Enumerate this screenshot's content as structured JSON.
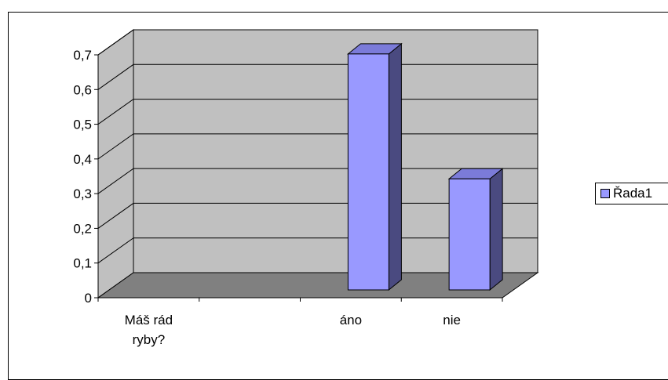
{
  "chart_data": {
    "type": "bar",
    "style": "3d-column",
    "categories": [
      "Máš rád ryby?",
      "",
      "áno",
      "nie"
    ],
    "category_lines": [
      [
        "Máš rád",
        "ryby?"
      ],
      [],
      [
        "áno"
      ],
      [
        "nie"
      ]
    ],
    "series": [
      {
        "name": "Řada1",
        "values": [
          null,
          null,
          0.68,
          0.32
        ],
        "color": "#9999ff"
      }
    ],
    "ylim": [
      0,
      0.7
    ],
    "yticks": [
      "0",
      "0,1",
      "0,2",
      "0,3",
      "0,4",
      "0,5",
      "0,6",
      "0,7"
    ],
    "grid": true,
    "legend": "right",
    "colors": {
      "wall": "#c0c0c0",
      "floor": "#808080",
      "bar_front": "#9999ff",
      "bar_side": "#4a4a80",
      "bar_top": "#7b7bd9"
    }
  }
}
